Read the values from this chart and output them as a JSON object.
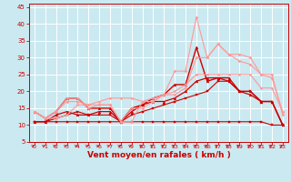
{
  "background_color": "#cbe9f0",
  "grid_color": "#ffffff",
  "xlabel": "Vent moyen/en rafales ( km/h )",
  "xlabel_color": "#cc0000",
  "xlabel_fontsize": 6.5,
  "tick_color": "#cc0000",
  "arrow_color": "#cc0000",
  "xlim": [
    -0.5,
    23.5
  ],
  "ylim": [
    5,
    46
  ],
  "xticks": [
    0,
    1,
    2,
    3,
    4,
    5,
    6,
    7,
    8,
    9,
    10,
    11,
    12,
    13,
    14,
    15,
    16,
    17,
    18,
    19,
    20,
    21,
    22,
    23
  ],
  "yticks": [
    5,
    10,
    15,
    20,
    25,
    30,
    35,
    40,
    45
  ],
  "lines": [
    {
      "x": [
        0,
        1,
        2,
        3,
        4,
        5,
        6,
        7,
        8,
        9,
        10,
        11,
        12,
        13,
        14,
        15,
        16,
        17,
        18,
        19,
        20,
        21,
        22,
        23
      ],
      "y": [
        11,
        11,
        11,
        11,
        11,
        11,
        11,
        11,
        11,
        11,
        11,
        11,
        11,
        11,
        11,
        11,
        11,
        11,
        11,
        11,
        11,
        11,
        10,
        10
      ],
      "color": "#cc0000",
      "linewidth": 0.8,
      "marker": "s",
      "markersize": 1.5
    },
    {
      "x": [
        0,
        1,
        2,
        3,
        4,
        5,
        6,
        7,
        8,
        9,
        10,
        11,
        12,
        13,
        14,
        15,
        16,
        17,
        18,
        19,
        20,
        21,
        22,
        23
      ],
      "y": [
        11,
        11,
        12,
        13,
        14,
        13,
        13,
        13,
        11,
        13,
        14,
        15,
        16,
        17,
        18,
        19,
        20,
        23,
        23,
        20,
        20,
        17,
        17,
        10
      ],
      "color": "#cc0000",
      "linewidth": 0.8,
      "marker": "s",
      "markersize": 1.5
    },
    {
      "x": [
        0,
        1,
        2,
        3,
        4,
        5,
        6,
        7,
        8,
        9,
        10,
        11,
        12,
        13,
        14,
        15,
        16,
        17,
        18,
        19,
        20,
        21,
        22,
        23
      ],
      "y": [
        11,
        11,
        13,
        14,
        13,
        13,
        14,
        14,
        11,
        14,
        16,
        17,
        17,
        18,
        20,
        23,
        24,
        24,
        23,
        20,
        19,
        17,
        17,
        10
      ],
      "color": "#cc0000",
      "linewidth": 0.9,
      "marker": "^",
      "markersize": 2
    },
    {
      "x": [
        0,
        1,
        2,
        3,
        4,
        5,
        6,
        7,
        8,
        9,
        10,
        11,
        12,
        13,
        14,
        15,
        16,
        17,
        18,
        19,
        20,
        21,
        22,
        23
      ],
      "y": [
        14,
        12,
        14,
        18,
        18,
        15,
        15,
        15,
        11,
        15,
        16,
        18,
        19,
        22,
        22,
        33,
        23,
        24,
        24,
        20,
        20,
        17,
        17,
        10
      ],
      "color": "#cc0000",
      "linewidth": 1.0,
      "marker": "^",
      "markersize": 2
    },
    {
      "x": [
        0,
        1,
        2,
        3,
        4,
        5,
        6,
        7,
        8,
        9,
        10,
        11,
        12,
        13,
        14,
        15,
        16,
        17,
        18,
        19,
        20,
        21,
        22,
        23
      ],
      "y": [
        14,
        12,
        14,
        18,
        18,
        15,
        16,
        16,
        11,
        11,
        17,
        18,
        19,
        26,
        26,
        42,
        30,
        34,
        31,
        29,
        28,
        25,
        25,
        13
      ],
      "color": "#ff9999",
      "linewidth": 0.8,
      "marker": "D",
      "markersize": 1.5
    },
    {
      "x": [
        0,
        1,
        2,
        3,
        4,
        5,
        6,
        7,
        8,
        9,
        10,
        11,
        12,
        13,
        14,
        15,
        16,
        17,
        18,
        19,
        20,
        21,
        22,
        23
      ],
      "y": [
        14,
        12,
        14,
        17,
        17,
        16,
        16,
        16,
        11,
        15,
        15,
        17,
        19,
        19,
        21,
        30,
        30,
        34,
        31,
        31,
        30,
        25,
        24,
        14
      ],
      "color": "#ff9999",
      "linewidth": 0.8,
      "marker": "D",
      "markersize": 1.5
    },
    {
      "x": [
        0,
        1,
        2,
        3,
        4,
        5,
        6,
        7,
        8,
        9,
        10,
        11,
        12,
        13,
        14,
        15,
        16,
        17,
        18,
        19,
        20,
        21,
        22,
        23
      ],
      "y": [
        14,
        12,
        12,
        13,
        16,
        16,
        17,
        18,
        18,
        18,
        17,
        17,
        19,
        20,
        22,
        25,
        25,
        25,
        25,
        25,
        25,
        21,
        21,
        14
      ],
      "color": "#ff9999",
      "linewidth": 0.8,
      "marker": "o",
      "markersize": 1.5
    }
  ]
}
